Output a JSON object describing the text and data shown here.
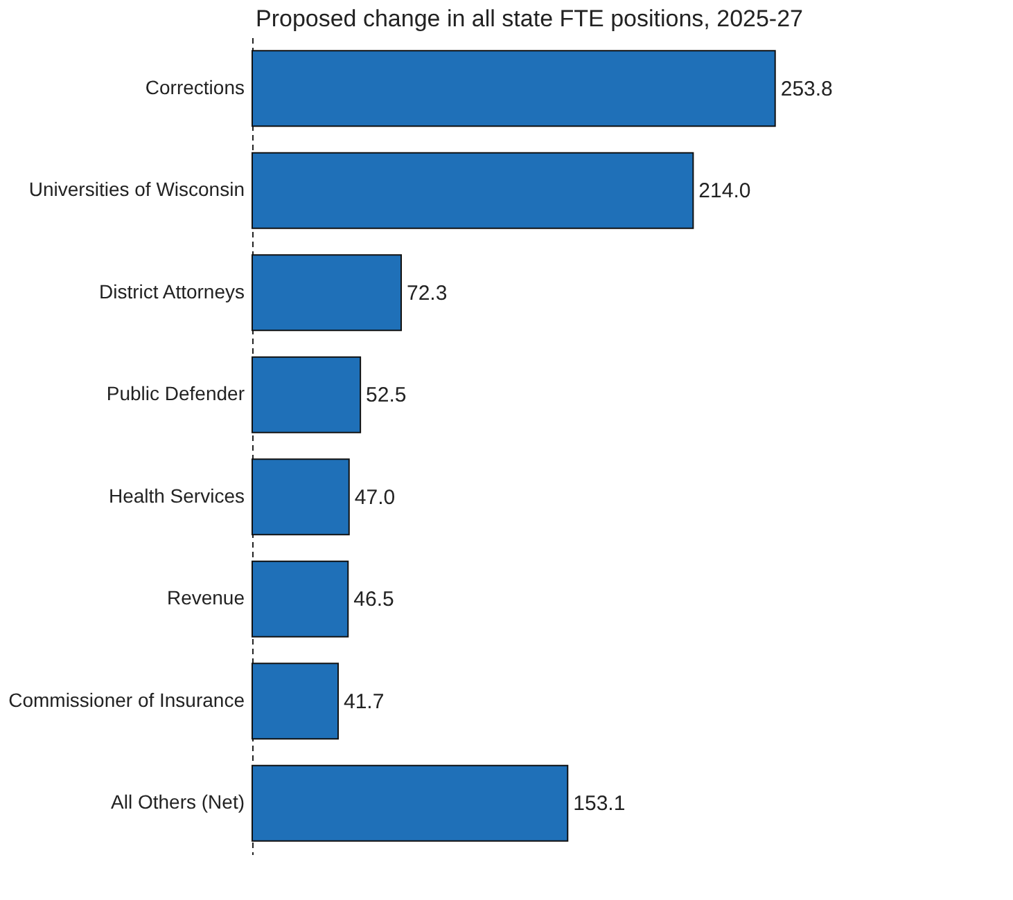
{
  "chart_data": {
    "type": "bar",
    "orientation": "horizontal",
    "title": "Proposed change in all state FTE positions, 2025-27",
    "categories": [
      "Corrections",
      "Universities of Wisconsin",
      "District Attorneys",
      "Public Defender",
      "Health Services",
      "Revenue",
      "Commissioner of Insurance",
      "All Others (Net)"
    ],
    "values": [
      253.8,
      214.0,
      72.3,
      52.5,
      47.0,
      46.5,
      41.7,
      153.1
    ],
    "value_labels": [
      "253.8",
      "214.0",
      "72.3",
      "52.5",
      "47.0",
      "46.5",
      "41.7",
      "153.1"
    ],
    "color": "#1f70b8",
    "tick_labels": "y",
    "grid": false
  }
}
